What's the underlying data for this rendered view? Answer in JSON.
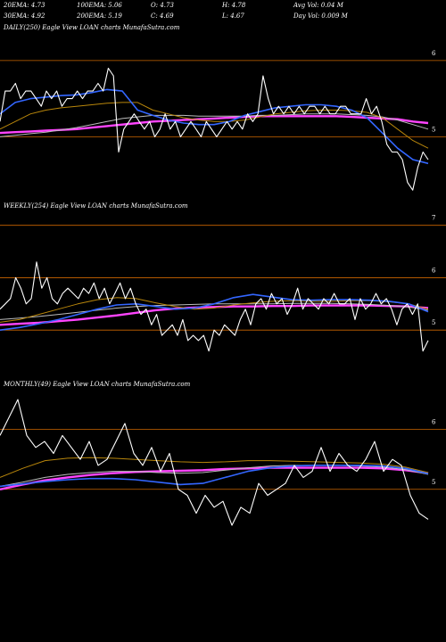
{
  "header": {
    "row1": [
      {
        "key": "ema20",
        "text": "20EMA: 4.73"
      },
      {
        "key": "ema100",
        "text": "100EMA: 5.06"
      },
      {
        "key": "open",
        "text": "O: 4.73"
      },
      {
        "key": "high",
        "text": "H: 4.78"
      },
      {
        "key": "avgvol",
        "text": "Avg Vol: 0.04  M"
      }
    ],
    "row2": [
      {
        "key": "ema30",
        "text": "30EMA: 4.92"
      },
      {
        "key": "ema200",
        "text": "200EMA: 5.19"
      },
      {
        "key": "close",
        "text": "C: 4.69"
      },
      {
        "key": "low",
        "text": "L: 4.67"
      },
      {
        "key": "dayvol",
        "text": "Day Vol: 0.009 M"
      }
    ]
  },
  "colors": {
    "background": "#000000",
    "price": "#ffffff",
    "ema_blue": "#3366ff",
    "ema_magenta": "#ff44ff",
    "ema_brown": "#b8860b",
    "ema_gray": "#bbbbbb",
    "level_line": "#cc6600"
  },
  "chart_data": [
    {
      "type": "line",
      "title": "DAILY(250) Eagle  View  LOAN  charts MunafaSutra.com",
      "y_ticks": [
        "6",
        "5"
      ],
      "y_tick_values": [
        6,
        5
      ],
      "level_lines": [
        6,
        5
      ],
      "ylim": [
        4.15,
        6.35
      ],
      "price": [
        5.2,
        5.6,
        5.6,
        5.7,
        5.5,
        5.6,
        5.6,
        5.5,
        5.4,
        5.6,
        5.5,
        5.6,
        5.4,
        5.5,
        5.5,
        5.6,
        5.5,
        5.6,
        5.6,
        5.7,
        5.6,
        5.9,
        5.8,
        4.8,
        5.1,
        5.2,
        5.3,
        5.2,
        5.1,
        5.2,
        5.0,
        5.1,
        5.3,
        5.1,
        5.2,
        5.0,
        5.1,
        5.2,
        5.1,
        5.0,
        5.2,
        5.1,
        5.0,
        5.1,
        5.2,
        5.1,
        5.2,
        5.1,
        5.3,
        5.2,
        5.3,
        5.8,
        5.5,
        5.3,
        5.4,
        5.3,
        5.4,
        5.3,
        5.4,
        5.3,
        5.4,
        5.4,
        5.3,
        5.4,
        5.3,
        5.3,
        5.4,
        5.4,
        5.3,
        5.3,
        5.3,
        5.5,
        5.3,
        5.4,
        5.2,
        4.9,
        4.8,
        4.8,
        4.7,
        4.4,
        4.3,
        4.6,
        4.8,
        4.7
      ],
      "series": [
        {
          "color_key": "ema_magenta",
          "values": [
            5.05,
            5.06,
            5.07,
            5.08,
            5.09,
            5.1,
            5.12,
            5.14,
            5.16,
            5.18,
            5.2,
            5.21,
            5.22,
            5.23,
            5.24,
            5.25,
            5.26,
            5.27,
            5.27,
            5.27,
            5.27,
            5.27,
            5.27,
            5.26,
            5.25,
            5.24,
            5.23,
            5.2,
            5.18
          ]
        },
        {
          "color_key": "ema_gray",
          "values": [
            5.0,
            5.02,
            5.04,
            5.06,
            5.09,
            5.12,
            5.16,
            5.2,
            5.24,
            5.26,
            5.28,
            5.28,
            5.28,
            5.27,
            5.27,
            5.27,
            5.27,
            5.28,
            5.28,
            5.29,
            5.3,
            5.3,
            5.3,
            5.29,
            5.28,
            5.26,
            5.22,
            5.16,
            5.1
          ]
        },
        {
          "color_key": "ema_brown",
          "values": [
            5.1,
            5.2,
            5.3,
            5.35,
            5.38,
            5.4,
            5.42,
            5.44,
            5.45,
            5.45,
            5.35,
            5.3,
            5.25,
            5.22,
            5.2,
            5.2,
            5.22,
            5.26,
            5.3,
            5.32,
            5.34,
            5.35,
            5.35,
            5.34,
            5.32,
            5.25,
            5.1,
            4.95,
            4.85
          ]
        },
        {
          "color_key": "ema_blue",
          "values": [
            5.3,
            5.45,
            5.5,
            5.52,
            5.54,
            5.55,
            5.58,
            5.62,
            5.6,
            5.35,
            5.28,
            5.22,
            5.18,
            5.16,
            5.16,
            5.2,
            5.28,
            5.33,
            5.38,
            5.4,
            5.42,
            5.42,
            5.4,
            5.35,
            5.25,
            5.05,
            4.85,
            4.7,
            4.65
          ]
        }
      ]
    },
    {
      "type": "line",
      "title": "WEEKLY(254) Eagle  View  LOAN  charts MunafaSutra.com",
      "y_ticks": [
        "7",
        "6",
        "5"
      ],
      "y_tick_values": [
        7,
        6,
        5
      ],
      "level_lines": [
        7,
        6,
        5
      ],
      "ylim": [
        4.05,
        7.25
      ],
      "price": [
        5.4,
        5.5,
        5.6,
        6.0,
        5.8,
        5.5,
        5.6,
        6.3,
        5.8,
        6.0,
        5.6,
        5.5,
        5.7,
        5.8,
        5.7,
        5.6,
        5.8,
        5.7,
        5.9,
        5.6,
        5.8,
        5.5,
        5.7,
        5.9,
        5.6,
        5.8,
        5.5,
        5.3,
        5.4,
        5.1,
        5.3,
        4.9,
        5.0,
        5.1,
        4.9,
        5.2,
        4.8,
        4.9,
        4.8,
        4.9,
        4.6,
        5.0,
        4.9,
        5.1,
        5.0,
        4.9,
        5.2,
        5.4,
        5.1,
        5.5,
        5.6,
        5.4,
        5.7,
        5.5,
        5.6,
        5.3,
        5.5,
        5.8,
        5.4,
        5.6,
        5.5,
        5.4,
        5.6,
        5.5,
        5.7,
        5.5,
        5.5,
        5.6,
        5.2,
        5.6,
        5.4,
        5.5,
        5.7,
        5.5,
        5.6,
        5.4,
        5.1,
        5.4,
        5.5,
        5.3,
        5.5,
        4.6,
        4.8
      ],
      "series": [
        {
          "color_key": "ema_magenta",
          "values": [
            5.1,
            5.12,
            5.14,
            5.17,
            5.2,
            5.24,
            5.28,
            5.33,
            5.38,
            5.41,
            5.43,
            5.44,
            5.45,
            5.45,
            5.46,
            5.46,
            5.47,
            5.47,
            5.47,
            5.47,
            5.46,
            5.45,
            5.42
          ]
        },
        {
          "color_key": "ema_gray",
          "values": [
            5.2,
            5.23,
            5.26,
            5.3,
            5.34,
            5.38,
            5.42,
            5.45,
            5.47,
            5.48,
            5.49,
            5.5,
            5.5,
            5.5,
            5.5,
            5.51,
            5.51,
            5.51,
            5.5,
            5.49,
            5.47,
            5.44,
            5.38
          ]
        },
        {
          "color_key": "ema_brown",
          "values": [
            5.15,
            5.2,
            5.3,
            5.4,
            5.5,
            5.58,
            5.62,
            5.6,
            5.52,
            5.45,
            5.4,
            5.42,
            5.48,
            5.52,
            5.55,
            5.56,
            5.55,
            5.55,
            5.56,
            5.56,
            5.54,
            5.5,
            5.4
          ]
        },
        {
          "color_key": "ema_blue",
          "values": [
            5.0,
            5.05,
            5.12,
            5.2,
            5.3,
            5.4,
            5.48,
            5.5,
            5.45,
            5.4,
            5.42,
            5.5,
            5.62,
            5.68,
            5.63,
            5.58,
            5.57,
            5.58,
            5.58,
            5.57,
            5.55,
            5.5,
            5.35
          ]
        }
      ]
    },
    {
      "type": "line",
      "title": "MONTHLY(49) Eagle  View  LOAN  charts MunafaSutra.com",
      "y_ticks": [
        "6",
        "5"
      ],
      "y_tick_values": [
        6,
        5
      ],
      "level_lines": [
        6,
        5
      ],
      "ylim": [
        3.85,
        6.65
      ],
      "price": [
        5.9,
        6.2,
        6.5,
        5.9,
        5.7,
        5.8,
        5.6,
        5.9,
        5.7,
        5.5,
        5.8,
        5.4,
        5.5,
        5.8,
        6.1,
        5.6,
        5.4,
        5.7,
        5.3,
        5.6,
        5.0,
        4.9,
        4.6,
        4.9,
        4.7,
        4.8,
        4.4,
        4.7,
        4.6,
        5.1,
        4.9,
        5.0,
        5.1,
        5.4,
        5.2,
        5.3,
        5.7,
        5.3,
        5.6,
        5.4,
        5.3,
        5.5,
        5.8,
        5.3,
        5.5,
        5.4,
        4.9,
        4.6,
        4.5
      ],
      "series": [
        {
          "color_key": "ema_magenta",
          "values": [
            5.0,
            5.08,
            5.15,
            5.2,
            5.24,
            5.27,
            5.29,
            5.3,
            5.31,
            5.32,
            5.34,
            5.35,
            5.36,
            5.36,
            5.36,
            5.36,
            5.36,
            5.35,
            5.32,
            5.27
          ]
        },
        {
          "color_key": "ema_gray",
          "values": [
            5.05,
            5.12,
            5.2,
            5.25,
            5.28,
            5.3,
            5.3,
            5.28,
            5.27,
            5.28,
            5.32,
            5.36,
            5.39,
            5.4,
            5.4,
            5.4,
            5.39,
            5.37,
            5.33,
            5.25
          ]
        },
        {
          "color_key": "ema_brown",
          "values": [
            5.2,
            5.35,
            5.48,
            5.52,
            5.53,
            5.52,
            5.5,
            5.48,
            5.46,
            5.45,
            5.46,
            5.48,
            5.48,
            5.47,
            5.46,
            5.45,
            5.44,
            5.42,
            5.37,
            5.28
          ]
        },
        {
          "color_key": "ema_blue",
          "values": [
            5.05,
            5.09,
            5.13,
            5.16,
            5.18,
            5.18,
            5.16,
            5.12,
            5.08,
            5.1,
            5.2,
            5.3,
            5.36,
            5.39,
            5.4,
            5.4,
            5.4,
            5.39,
            5.35,
            5.26
          ]
        }
      ]
    }
  ]
}
